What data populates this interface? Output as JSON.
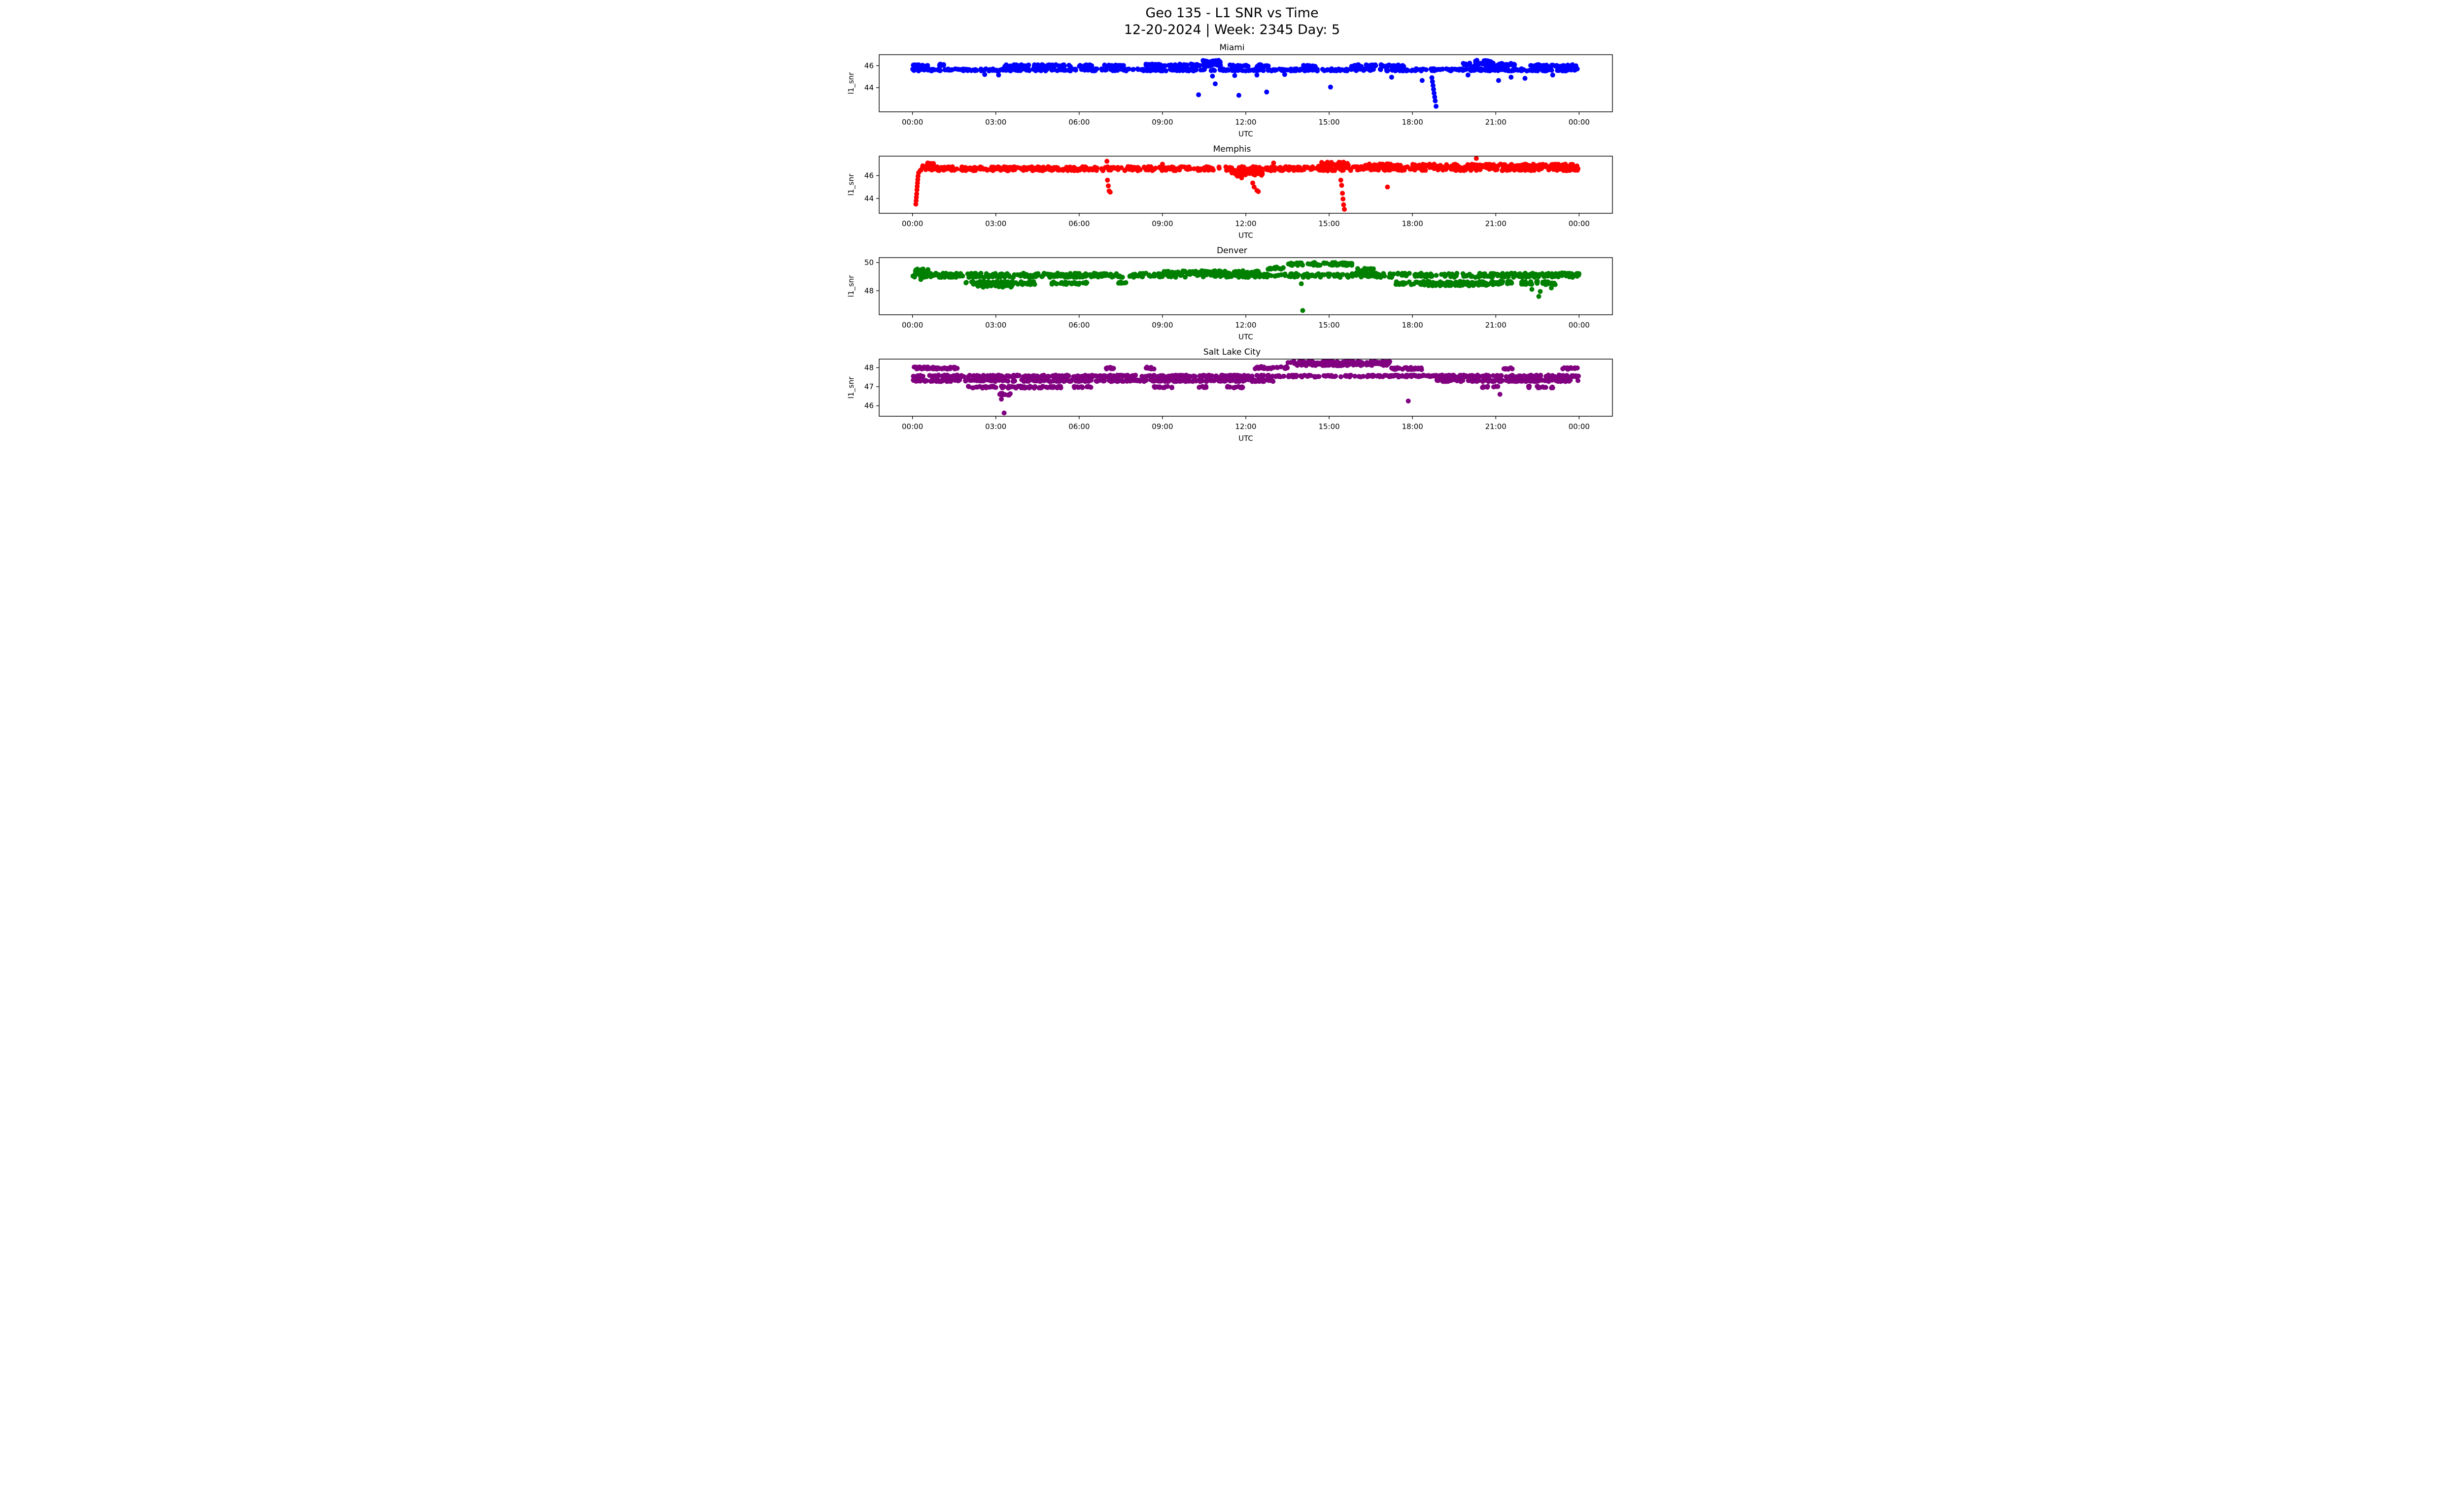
{
  "figure": {
    "title_line1": "Geo 135 - L1 SNR vs Time",
    "title_line2": "12-20-2024 | Week: 2345 Day: 5",
    "xticks": [
      {
        "t": 0,
        "label": "00:00"
      },
      {
        "t": 3,
        "label": "03:00"
      },
      {
        "t": 6,
        "label": "06:00"
      },
      {
        "t": 9,
        "label": "09:00"
      },
      {
        "t": 12,
        "label": "12:00"
      },
      {
        "t": 15,
        "label": "15:00"
      },
      {
        "t": 18,
        "label": "18:00"
      },
      {
        "t": 21,
        "label": "21:00"
      },
      {
        "t": 24,
        "label": "00:00"
      }
    ]
  },
  "chart_data": [
    {
      "type": "scatter",
      "title": "Miami",
      "color": "#0000ff",
      "xlabel": "UTC",
      "ylabel": "l1_snr",
      "xlim": [
        -1.2,
        25.2
      ],
      "ylim": [
        41.8,
        47.0
      ],
      "yticks": [
        44,
        46
      ],
      "bands": [
        {
          "t0": 0,
          "t1": 24,
          "y": 45.62,
          "j": 0.1,
          "n": 560
        },
        {
          "t0": 0.0,
          "t1": 0.55,
          "y": 46.0,
          "j": 0.09,
          "n": 16
        },
        {
          "t0": 0.9,
          "t1": 1.15,
          "y": 46.05,
          "j": 0.09,
          "n": 9
        },
        {
          "t0": 3.3,
          "t1": 5.7,
          "y": 46.0,
          "j": 0.09,
          "n": 62
        },
        {
          "t0": 6.0,
          "t1": 6.5,
          "y": 46.0,
          "j": 0.08,
          "n": 12
        },
        {
          "t0": 6.9,
          "t1": 7.6,
          "y": 46.0,
          "j": 0.08,
          "n": 12
        },
        {
          "t0": 8.4,
          "t1": 11.1,
          "y": 46.05,
          "j": 0.1,
          "n": 70
        },
        {
          "t0": 10.45,
          "t1": 11.1,
          "y": 46.38,
          "j": 0.12,
          "n": 18
        },
        {
          "t0": 11.4,
          "t1": 12.1,
          "y": 46.0,
          "j": 0.09,
          "n": 17
        },
        {
          "t0": 12.4,
          "t1": 12.9,
          "y": 46.0,
          "j": 0.09,
          "n": 12
        },
        {
          "t0": 14.0,
          "t1": 14.5,
          "y": 45.95,
          "j": 0.08,
          "n": 9
        },
        {
          "t0": 15.8,
          "t1": 17.7,
          "y": 46.0,
          "j": 0.09,
          "n": 50
        },
        {
          "t0": 19.8,
          "t1": 21.7,
          "y": 46.1,
          "j": 0.13,
          "n": 58
        },
        {
          "t0": 20.25,
          "t1": 20.95,
          "y": 46.4,
          "j": 0.1,
          "n": 15
        },
        {
          "t0": 22.2,
          "t1": 23.9,
          "y": 46.0,
          "j": 0.1,
          "n": 46
        }
      ],
      "outliers": [
        [
          10.3,
          43.35
        ],
        [
          10.9,
          44.35
        ],
        [
          10.8,
          45.05
        ],
        [
          11.75,
          43.3
        ],
        [
          12.75,
          43.6
        ],
        [
          15.05,
          44.05
        ],
        [
          11.6,
          45.1
        ],
        [
          12.4,
          45.15
        ],
        [
          17.25,
          44.95
        ],
        [
          18.35,
          44.65
        ],
        [
          18.7,
          44.9
        ],
        [
          18.72,
          44.55
        ],
        [
          18.74,
          44.2
        ],
        [
          18.76,
          43.85
        ],
        [
          18.78,
          43.5
        ],
        [
          18.8,
          43.15
        ],
        [
          18.82,
          42.8
        ],
        [
          18.85,
          42.3
        ],
        [
          2.6,
          45.2
        ],
        [
          3.1,
          45.15
        ],
        [
          21.1,
          44.65
        ],
        [
          21.55,
          44.95
        ],
        [
          22.05,
          44.85
        ],
        [
          23.05,
          45.15
        ],
        [
          20.0,
          45.15
        ],
        [
          13.4,
          45.2
        ]
      ]
    },
    {
      "type": "scatter",
      "title": "Memphis",
      "color": "#ff0000",
      "xlabel": "UTC",
      "ylabel": "l1_snr",
      "xlim": [
        -1.2,
        25.2
      ],
      "ylim": [
        42.7,
        47.7
      ],
      "yticks": [
        44,
        46
      ],
      "bands": [
        {
          "t0": 0.25,
          "t1": 24,
          "y": 46.6,
          "j": 0.18,
          "n": 640
        },
        {
          "t0": 0.3,
          "t1": 0.8,
          "y": 46.95,
          "j": 0.12,
          "n": 12
        },
        {
          "t0": 11.5,
          "t1": 12.6,
          "y": 46.25,
          "j": 0.22,
          "n": 40
        },
        {
          "t0": 14.6,
          "t1": 15.7,
          "y": 47.0,
          "j": 0.18,
          "n": 32
        },
        {
          "t0": 16.2,
          "t1": 17.6,
          "y": 46.9,
          "j": 0.15,
          "n": 34
        },
        {
          "t0": 18.0,
          "t1": 24,
          "y": 46.85,
          "j": 0.15,
          "n": 150
        }
      ],
      "outliers": [
        [
          0.12,
          43.5
        ],
        [
          0.13,
          43.8
        ],
        [
          0.14,
          44.1
        ],
        [
          0.15,
          44.4
        ],
        [
          0.16,
          44.75
        ],
        [
          0.17,
          45.05
        ],
        [
          0.18,
          45.35
        ],
        [
          0.19,
          45.65
        ],
        [
          0.2,
          45.95
        ],
        [
          0.22,
          46.25
        ],
        [
          0.55,
          47.1
        ],
        [
          7.0,
          47.25
        ],
        [
          7.02,
          45.6
        ],
        [
          7.05,
          45.1
        ],
        [
          7.08,
          44.65
        ],
        [
          7.12,
          44.55
        ],
        [
          11.7,
          45.95
        ],
        [
          11.85,
          45.8
        ],
        [
          12.25,
          45.35
        ],
        [
          12.3,
          45.0
        ],
        [
          12.4,
          44.7
        ],
        [
          12.45,
          44.6
        ],
        [
          15.42,
          45.6
        ],
        [
          15.45,
          45.15
        ],
        [
          15.48,
          44.45
        ],
        [
          15.5,
          43.95
        ],
        [
          15.52,
          43.45
        ],
        [
          15.55,
          43.05
        ],
        [
          17.1,
          45.0
        ],
        [
          20.3,
          47.5
        ],
        [
          13.0,
          47.1
        ],
        [
          9.0,
          47.0
        ]
      ]
    },
    {
      "type": "scatter",
      "title": "Denver",
      "color": "#008000",
      "xlabel": "UTC",
      "ylabel": "l1_snr",
      "xlim": [
        -1.2,
        25.2
      ],
      "ylim": [
        46.3,
        50.35
      ],
      "yticks": [
        48,
        50
      ],
      "bands": [
        {
          "t0": 0,
          "t1": 24,
          "y": 49.1,
          "j": 0.15,
          "n": 600
        },
        {
          "t0": 0.1,
          "t1": 0.7,
          "y": 49.45,
          "j": 0.1,
          "n": 14
        },
        {
          "t0": 1.8,
          "t1": 4.4,
          "y": 48.55,
          "j": 0.12,
          "n": 70
        },
        {
          "t0": 2.2,
          "t1": 3.6,
          "y": 48.35,
          "j": 0.1,
          "n": 30
        },
        {
          "t0": 5.0,
          "t1": 6.3,
          "y": 48.55,
          "j": 0.1,
          "n": 25
        },
        {
          "t0": 7.3,
          "t1": 7.7,
          "y": 48.6,
          "j": 0.08,
          "n": 7
        },
        {
          "t0": 9.0,
          "t1": 12.5,
          "y": 49.3,
          "j": 0.12,
          "n": 90
        },
        {
          "t0": 12.8,
          "t1": 13.4,
          "y": 49.6,
          "j": 0.1,
          "n": 14
        },
        {
          "t0": 13.4,
          "t1": 15.9,
          "y": 49.9,
          "j": 0.1,
          "n": 75
        },
        {
          "t0": 16.0,
          "t1": 16.7,
          "y": 49.5,
          "j": 0.12,
          "n": 16
        },
        {
          "t0": 17.4,
          "t1": 21.6,
          "y": 48.55,
          "j": 0.12,
          "n": 115
        },
        {
          "t0": 18.3,
          "t1": 20.7,
          "y": 48.45,
          "j": 0.1,
          "n": 50
        },
        {
          "t0": 21.9,
          "t1": 23.2,
          "y": 48.55,
          "j": 0.12,
          "n": 35
        },
        {
          "t0": 23.2,
          "t1": 24,
          "y": 49.15,
          "j": 0.12,
          "n": 26
        }
      ],
      "outliers": [
        [
          14.05,
          46.6
        ],
        [
          22.55,
          47.6
        ],
        [
          22.6,
          47.95
        ],
        [
          0.3,
          48.8
        ],
        [
          23.0,
          48.2
        ],
        [
          22.3,
          48.1
        ],
        [
          14.0,
          48.5
        ]
      ]
    },
    {
      "type": "scatter",
      "title": "Salt Lake City",
      "color": "#800080",
      "xlabel": "UTC",
      "ylabel": "l1_snr",
      "xlim": [
        -1.2,
        25.2
      ],
      "ylim": [
        45.45,
        48.45
      ],
      "yticks": [
        46,
        47,
        48
      ],
      "bands": [
        {
          "t0": 0,
          "t1": 24,
          "y": 47.56,
          "j": 0.05,
          "n": 560
        },
        {
          "t0": 0,
          "t1": 13.0,
          "y": 47.32,
          "j": 0.05,
          "n": 330
        },
        {
          "t0": 18.8,
          "t1": 24,
          "y": 47.32,
          "j": 0.05,
          "n": 130
        },
        {
          "t0": 0.05,
          "t1": 1.65,
          "y": 47.98,
          "j": 0.06,
          "n": 45
        },
        {
          "t0": 6.95,
          "t1": 7.3,
          "y": 47.98,
          "j": 0.05,
          "n": 9
        },
        {
          "t0": 8.35,
          "t1": 8.7,
          "y": 47.98,
          "j": 0.05,
          "n": 9
        },
        {
          "t0": 12.3,
          "t1": 13.5,
          "y": 48.0,
          "j": 0.06,
          "n": 34
        },
        {
          "t0": 13.5,
          "t1": 17.2,
          "y": 48.22,
          "j": 0.12,
          "n": 175
        },
        {
          "t0": 17.25,
          "t1": 18.35,
          "y": 47.95,
          "j": 0.06,
          "n": 28
        },
        {
          "t0": 21.25,
          "t1": 21.6,
          "y": 47.95,
          "j": 0.05,
          "n": 9
        },
        {
          "t0": 23.4,
          "t1": 24,
          "y": 47.95,
          "j": 0.05,
          "n": 16
        },
        {
          "t0": 2.0,
          "t1": 5.35,
          "y": 46.98,
          "j": 0.05,
          "n": 85
        },
        {
          "t0": 5.8,
          "t1": 6.5,
          "y": 46.98,
          "j": 0.04,
          "n": 14
        },
        {
          "t0": 8.7,
          "t1": 9.4,
          "y": 46.98,
          "j": 0.04,
          "n": 14
        },
        {
          "t0": 10.3,
          "t1": 10.65,
          "y": 46.98,
          "j": 0.04,
          "n": 7
        },
        {
          "t0": 11.3,
          "t1": 11.9,
          "y": 46.98,
          "j": 0.04,
          "n": 12
        },
        {
          "t0": 20.5,
          "t1": 21.1,
          "y": 46.98,
          "j": 0.04,
          "n": 10
        },
        {
          "t0": 22.0,
          "t1": 23.1,
          "y": 46.98,
          "j": 0.05,
          "n": 14
        },
        {
          "t0": 3.05,
          "t1": 3.55,
          "y": 46.6,
          "j": 0.05,
          "n": 12
        }
      ],
      "outliers": [
        [
          3.3,
          45.62
        ],
        [
          17.85,
          46.25
        ],
        [
          21.15,
          46.6
        ],
        [
          3.2,
          46.35
        ]
      ]
    }
  ]
}
